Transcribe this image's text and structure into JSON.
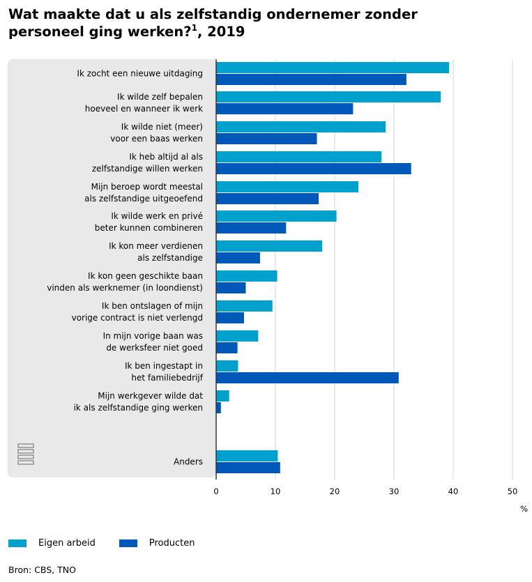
{
  "title": {
    "line1": "Wat maakte dat u als zelfstandig ondernemer zonder",
    "line2": "personeel ging werken?",
    "footnote": "1",
    "year": ", 2019"
  },
  "chart_data": {
    "type": "bar",
    "orientation": "horizontal",
    "categories": [
      [
        "Ik zocht een nieuwe uitdaging"
      ],
      [
        "Ik wilde zelf bepalen",
        "hoeveel en wanneer ik werk"
      ],
      [
        "Ik wilde niet (meer)",
        "voor een baas werken"
      ],
      [
        "Ik heb altijd al als",
        "zelfstandige willen werken"
      ],
      [
        "Mijn beroep wordt meestal",
        "als zelfstandige uitgeoefend"
      ],
      [
        "Ik wilde werk en privé",
        "beter kunnen combineren"
      ],
      [
        "Ik kon meer verdienen",
        "als zelfstandige"
      ],
      [
        "Ik kon geen geschikte baan",
        "vinden als werknemer (in loondienst)"
      ],
      [
        "Ik ben ontslagen of mijn",
        "vorige contract is niet verlengd"
      ],
      [
        "In mijn vorige baan was",
        "de werksfeer niet goed"
      ],
      [
        "Ik ben ingestapt in",
        "het familiebedrijf"
      ],
      [
        "Mijn werkgever wilde dat",
        "ik als zelfstandige ging werken"
      ],
      [
        "Anders"
      ]
    ],
    "series": [
      {
        "name": "Eigen arbeid",
        "color": "#00a1cd",
        "values": [
          39.3,
          37.9,
          28.6,
          27.9,
          24.0,
          20.3,
          17.9,
          10.3,
          9.5,
          7.1,
          3.7,
          2.2,
          10.4
        ]
      },
      {
        "name": "Producten",
        "color": "#0058b8",
        "values": [
          32.1,
          23.1,
          17.0,
          32.9,
          17.3,
          11.8,
          7.4,
          5.0,
          4.7,
          3.6,
          30.8,
          0.8,
          10.8
        ]
      }
    ],
    "xlim": [
      0,
      50
    ],
    "xticks": [
      0,
      10,
      20,
      30,
      40,
      50
    ],
    "unit": "%",
    "grid": true,
    "legend_position": "bottom-left"
  },
  "source": "Bron: CBS, TNO"
}
